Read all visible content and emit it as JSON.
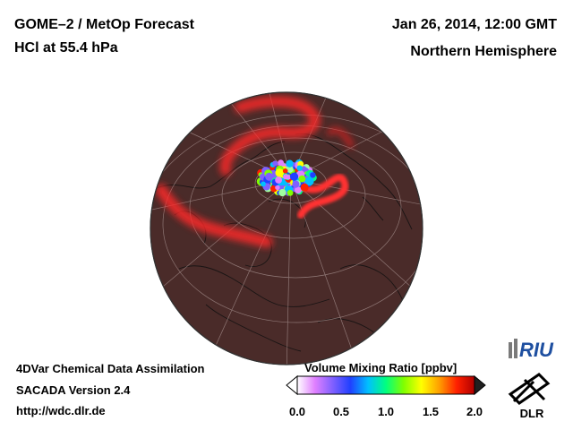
{
  "header": {
    "title_line1": "GOME–2 / MetOp Forecast",
    "title_line2": "HCl at 55.4 hPa",
    "date": "Jan 26, 2014, 12:00 GMT",
    "region": "Northern Hemisphere"
  },
  "footer": {
    "line1": "4DVar Chemical Data Assimilation",
    "line2": "SACADA Version 2.4",
    "url": "http://wdc.dlr.de"
  },
  "colorbar": {
    "title": "Volume Mixing Ratio [ppbv]",
    "ticks": [
      "0.0",
      "0.5",
      "1.0",
      "1.5",
      "2.0"
    ],
    "min": 0.0,
    "max": 2.0,
    "colors": [
      "#ffffff",
      "#e080ff",
      "#8060ff",
      "#2040ff",
      "#00c0ff",
      "#00ff80",
      "#80ff00",
      "#ffff00",
      "#ffa000",
      "#ff2000",
      "#b00000"
    ]
  },
  "logos": {
    "riu": "RIU",
    "dlr": "DLR"
  },
  "map": {
    "background_color": "#4a2b29",
    "vortex_color": "#ff2a2a",
    "grid_color": "#a08a88",
    "coast_color": "#111111"
  }
}
